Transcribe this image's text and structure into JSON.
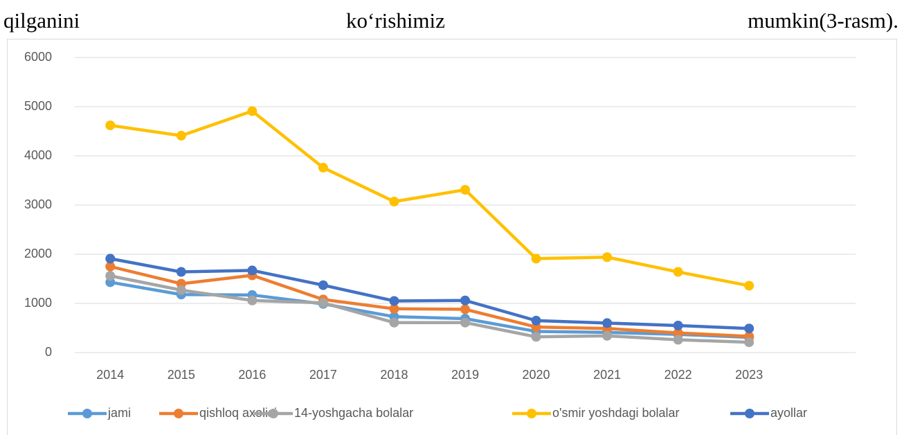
{
  "header": {
    "words": [
      "qilganini",
      "ko‘rishimiz",
      "mumkin(3-rasm)."
    ]
  },
  "chart_data": {
    "type": "line",
    "categories": [
      "2014",
      "2015",
      "2016",
      "2017",
      "2018",
      "2019",
      "2020",
      "2021",
      "2022",
      "2023",
      null
    ],
    "series": [
      {
        "name": "jami",
        "color": "#5b9bd5",
        "values": [
          1430,
          1180,
          1170,
          990,
          730,
          690,
          430,
          410,
          370,
          310,
          null
        ]
      },
      {
        "name": "qishloq axolisi",
        "color": "#ed7d31",
        "values": [
          1750,
          1400,
          1570,
          1080,
          890,
          880,
          520,
          490,
          400,
          330,
          null
        ]
      },
      {
        "name": "14-yoshgacha bolalar",
        "color": "#a5a5a5",
        "values": [
          1560,
          1270,
          1060,
          1010,
          610,
          610,
          320,
          340,
          260,
          210,
          null
        ]
      },
      {
        "name": "o'smir yoshdagi bolalar",
        "color": "#ffc000",
        "values": [
          4620,
          4410,
          4910,
          3760,
          3070,
          3310,
          1910,
          1940,
          1640,
          1360,
          null
        ]
      },
      {
        "name": "ayollar",
        "color": "#4472c4",
        "values": [
          1910,
          1640,
          1670,
          1370,
          1050,
          1060,
          650,
          600,
          550,
          490,
          null
        ]
      }
    ],
    "ylim": [
      0,
      6000
    ],
    "yticks": [
      0,
      1000,
      2000,
      3000,
      4000,
      5000,
      6000
    ],
    "grid": true,
    "legend": "bottom"
  }
}
